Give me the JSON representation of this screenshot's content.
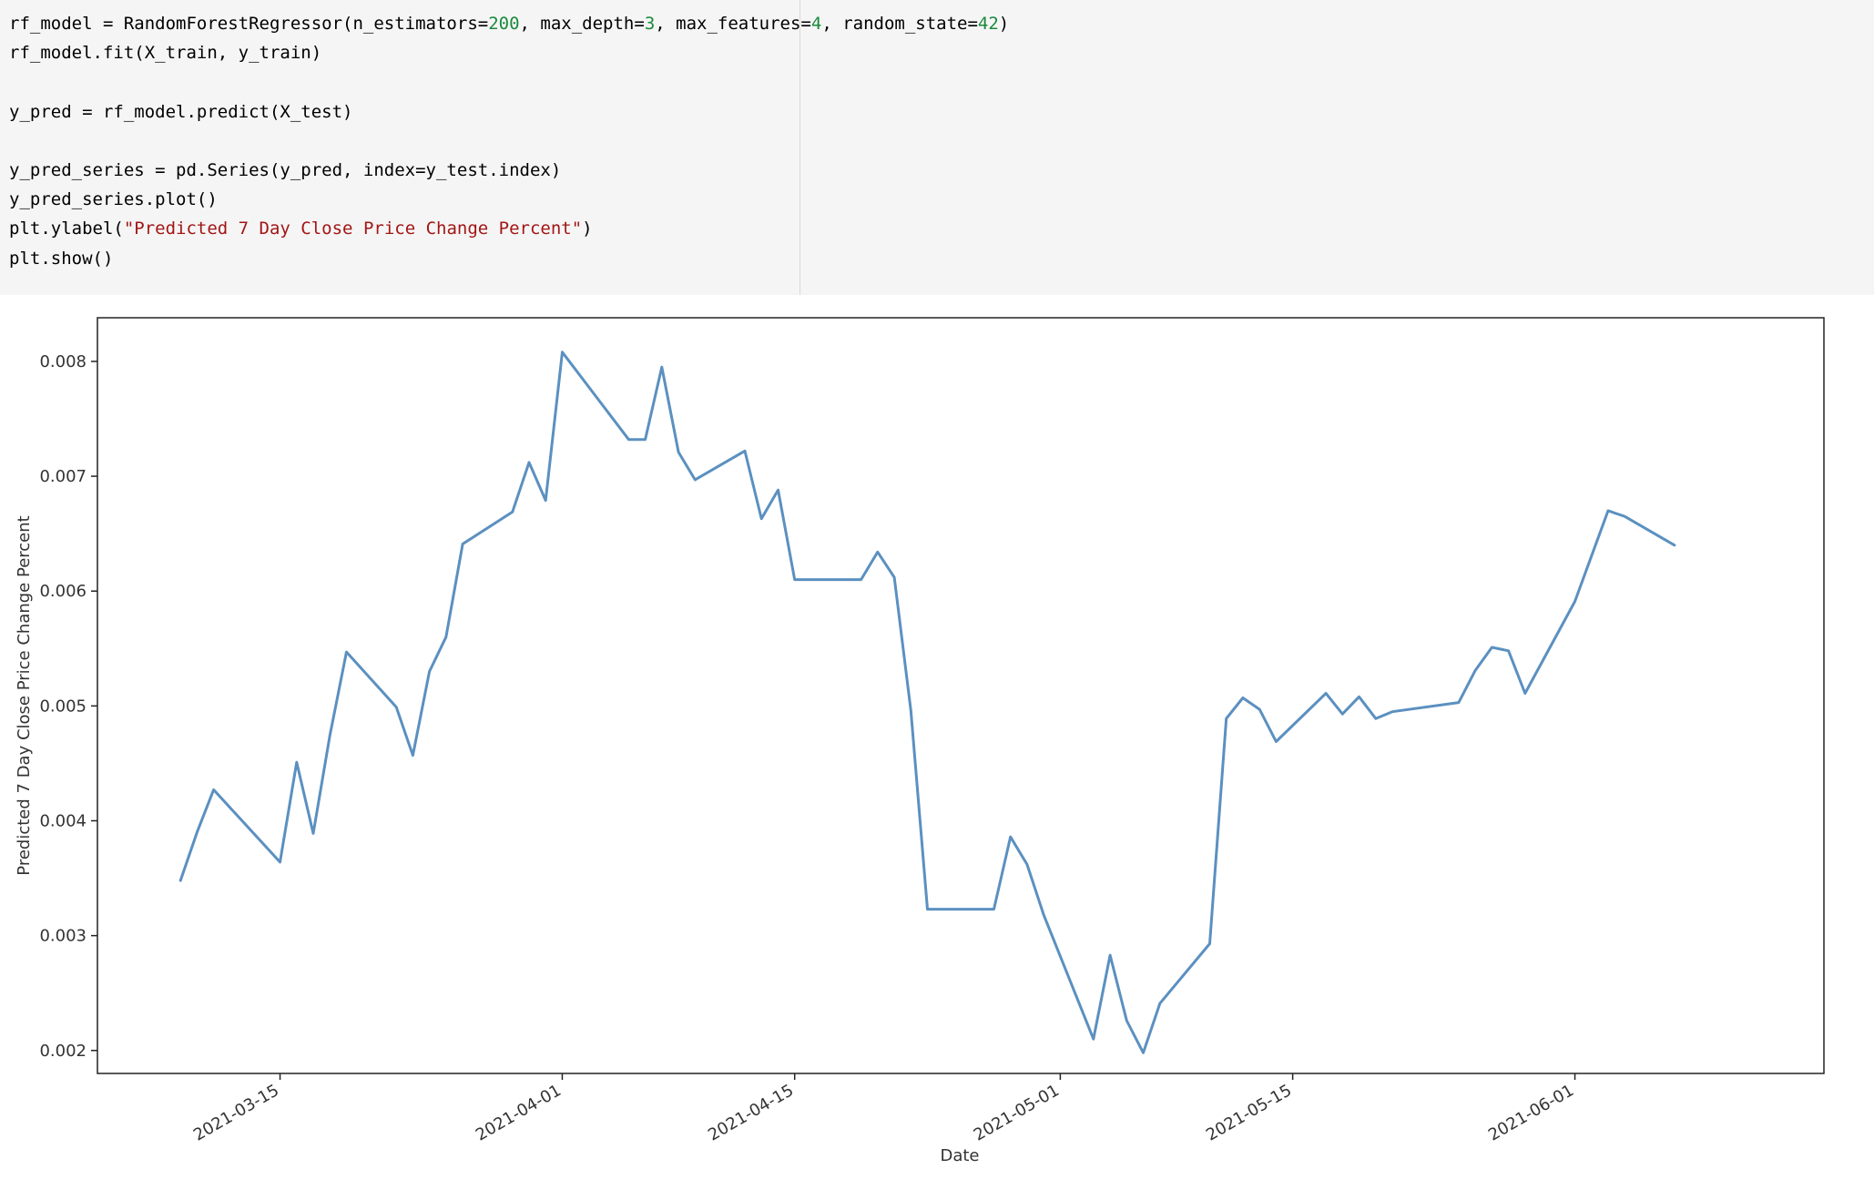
{
  "code_cell": {
    "lines": [
      [
        {
          "text": "rf_model = RandomForestRegressor(n_estimators=",
          "kind": "plain"
        },
        {
          "text": "200",
          "kind": "num"
        },
        {
          "text": ", max_depth=",
          "kind": "plain"
        },
        {
          "text": "3",
          "kind": "num"
        },
        {
          "text": ", max_features=",
          "kind": "plain"
        },
        {
          "text": "4",
          "kind": "num"
        },
        {
          "text": ", random_state=",
          "kind": "plain"
        },
        {
          "text": "42",
          "kind": "num"
        },
        {
          "text": ")",
          "kind": "plain"
        }
      ],
      [
        {
          "text": "rf_model.fit(X_train, y_train)",
          "kind": "plain"
        }
      ],
      [],
      [
        {
          "text": "y_pred = rf_model.predict(X_test)",
          "kind": "plain"
        }
      ],
      [],
      [
        {
          "text": "y_pred_series = pd.Series(y_pred, index=y_test.index)",
          "kind": "plain"
        }
      ],
      [
        {
          "text": "y_pred_series.plot()",
          "kind": "plain"
        }
      ],
      [
        {
          "text": "plt.ylabel(",
          "kind": "plain"
        },
        {
          "text": "\"Predicted 7 Day Close Price Change Percent\"",
          "kind": "str"
        },
        {
          "text": ")",
          "kind": "plain"
        }
      ],
      [
        {
          "text": "plt.show()",
          "kind": "plain"
        }
      ]
    ],
    "colors": {
      "number": "#1a8a3c",
      "string": "#a31515",
      "background": "#f5f5f5"
    }
  },
  "chart_data": {
    "type": "line",
    "xlabel": "Date",
    "ylabel": "Predicted 7 Day Close Price Change Percent",
    "x_is_date": true,
    "xlim": [
      "2021-03-04",
      "2021-06-16"
    ],
    "ylim": [
      0.0018,
      0.00838
    ],
    "y_ticks": [
      0.002,
      0.003,
      0.004,
      0.005,
      0.006,
      0.007,
      0.008
    ],
    "y_tick_labels": [
      "0.002",
      "0.003",
      "0.004",
      "0.005",
      "0.006",
      "0.007",
      "0.008"
    ],
    "x_ticks": [
      "2021-03-15",
      "2021-04-01",
      "2021-04-15",
      "2021-05-01",
      "2021-05-15",
      "2021-06-01"
    ],
    "x_tick_labels": [
      "2021-03-15",
      "2021-04-01",
      "2021-04-15",
      "2021-05-01",
      "2021-05-15",
      "2021-06-01"
    ],
    "line_color": "#5b90c0",
    "grid": false,
    "series": [
      {
        "x": [
          "2021-03-09",
          "2021-03-10",
          "2021-03-11",
          "2021-03-15",
          "2021-03-16",
          "2021-03-17",
          "2021-03-18",
          "2021-03-19",
          "2021-03-22",
          "2021-03-23",
          "2021-03-24",
          "2021-03-25",
          "2021-03-26",
          "2021-03-29",
          "2021-03-30",
          "2021-03-31",
          "2021-04-01",
          "2021-04-05",
          "2021-04-06",
          "2021-04-07",
          "2021-04-08",
          "2021-04-09",
          "2021-04-12",
          "2021-04-13",
          "2021-04-14",
          "2021-04-15",
          "2021-04-19",
          "2021-04-20",
          "2021-04-21",
          "2021-04-22",
          "2021-04-23",
          "2021-04-27",
          "2021-04-28",
          "2021-04-29",
          "2021-04-30",
          "2021-05-03",
          "2021-05-04",
          "2021-05-05",
          "2021-05-06",
          "2021-05-07",
          "2021-05-10",
          "2021-05-11",
          "2021-05-12",
          "2021-05-13",
          "2021-05-14",
          "2021-05-17",
          "2021-05-18",
          "2021-05-19",
          "2021-05-20",
          "2021-05-21",
          "2021-05-25",
          "2021-05-26",
          "2021-05-27",
          "2021-05-28",
          "2021-05-29",
          "2021-06-01",
          "2021-06-03",
          "2021-06-04",
          "2021-06-07"
        ],
        "values": [
          0.00348,
          0.0039,
          0.00427,
          0.00364,
          0.00451,
          0.00389,
          0.00474,
          0.00547,
          0.00499,
          0.00457,
          0.0053,
          0.0056,
          0.00641,
          0.00669,
          0.00712,
          0.00679,
          0.00808,
          0.00732,
          0.00732,
          0.00795,
          0.00721,
          0.00697,
          0.00722,
          0.00663,
          0.00688,
          0.0061,
          0.0061,
          0.00634,
          0.00612,
          0.00496,
          0.00323,
          0.00323,
          0.00386,
          0.00362,
          0.00318,
          0.0021,
          0.00283,
          0.00226,
          0.00198,
          0.00241,
          0.00293,
          0.00489,
          0.00507,
          0.00497,
          0.00469,
          0.00511,
          0.00493,
          0.00508,
          0.00489,
          0.00495,
          0.00503,
          0.00531,
          0.00551,
          0.00548,
          0.00511,
          0.00591,
          0.0067,
          0.00665,
          0.0064
        ]
      }
    ]
  }
}
